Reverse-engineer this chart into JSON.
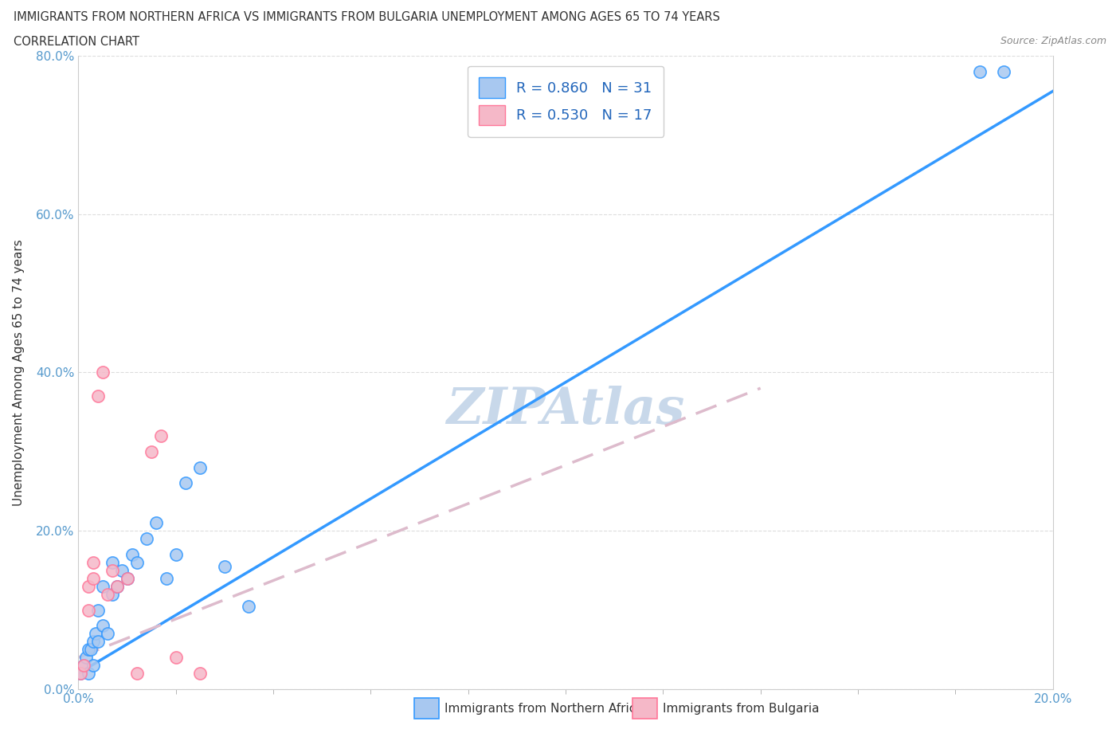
{
  "title_line1": "IMMIGRANTS FROM NORTHERN AFRICA VS IMMIGRANTS FROM BULGARIA UNEMPLOYMENT AMONG AGES 65 TO 74 YEARS",
  "title_line2": "CORRELATION CHART",
  "source": "Source: ZipAtlas.com",
  "xlabel_bottom": "Immigrants from Northern Africa",
  "xlabel_bottom2": "Immigrants from Bulgaria",
  "ylabel": "Unemployment Among Ages 65 to 74 years",
  "R_blue": 0.86,
  "N_blue": 31,
  "R_pink": 0.53,
  "N_pink": 17,
  "color_blue": "#a8c8f0",
  "color_blue_line": "#3399ff",
  "color_pink": "#f5b8c8",
  "color_pink_line": "#ff7799",
  "color_watermark": "#c8d8ea",
  "xlim": [
    0.0,
    0.2
  ],
  "ylim": [
    0.0,
    0.8
  ],
  "xtick_positions": [
    0.0,
    0.2
  ],
  "xtick_minor_positions": [
    0.02,
    0.04,
    0.06,
    0.08,
    0.1,
    0.12,
    0.14,
    0.16,
    0.18
  ],
  "ytick_positions": [
    0.0,
    0.2,
    0.4,
    0.6,
    0.8
  ],
  "blue_scatter_x": [
    0.0005,
    0.001,
    0.0015,
    0.002,
    0.002,
    0.0025,
    0.003,
    0.003,
    0.0035,
    0.004,
    0.004,
    0.005,
    0.005,
    0.006,
    0.007,
    0.007,
    0.008,
    0.009,
    0.01,
    0.011,
    0.012,
    0.014,
    0.016,
    0.018,
    0.02,
    0.022,
    0.025,
    0.03,
    0.035,
    0.185,
    0.19
  ],
  "blue_scatter_y": [
    0.02,
    0.03,
    0.04,
    0.05,
    0.02,
    0.05,
    0.06,
    0.03,
    0.07,
    0.06,
    0.1,
    0.08,
    0.13,
    0.07,
    0.12,
    0.16,
    0.13,
    0.15,
    0.14,
    0.17,
    0.16,
    0.19,
    0.21,
    0.14,
    0.17,
    0.26,
    0.28,
    0.155,
    0.105,
    0.78,
    0.78
  ],
  "pink_scatter_x": [
    0.0005,
    0.001,
    0.002,
    0.002,
    0.003,
    0.003,
    0.004,
    0.005,
    0.006,
    0.007,
    0.008,
    0.01,
    0.012,
    0.015,
    0.017,
    0.02,
    0.025
  ],
  "pink_scatter_y": [
    0.02,
    0.03,
    0.1,
    0.13,
    0.14,
    0.16,
    0.37,
    0.4,
    0.12,
    0.15,
    0.13,
    0.14,
    0.02,
    0.3,
    0.32,
    0.04,
    0.02
  ],
  "blue_line_x0": 0.0,
  "blue_line_x1": 0.2,
  "blue_line_y0": 0.02,
  "blue_line_y1": 0.755,
  "pink_line_x0": 0.0,
  "pink_line_x1": 0.14,
  "pink_line_y0": 0.04,
  "pink_line_y1": 0.38
}
